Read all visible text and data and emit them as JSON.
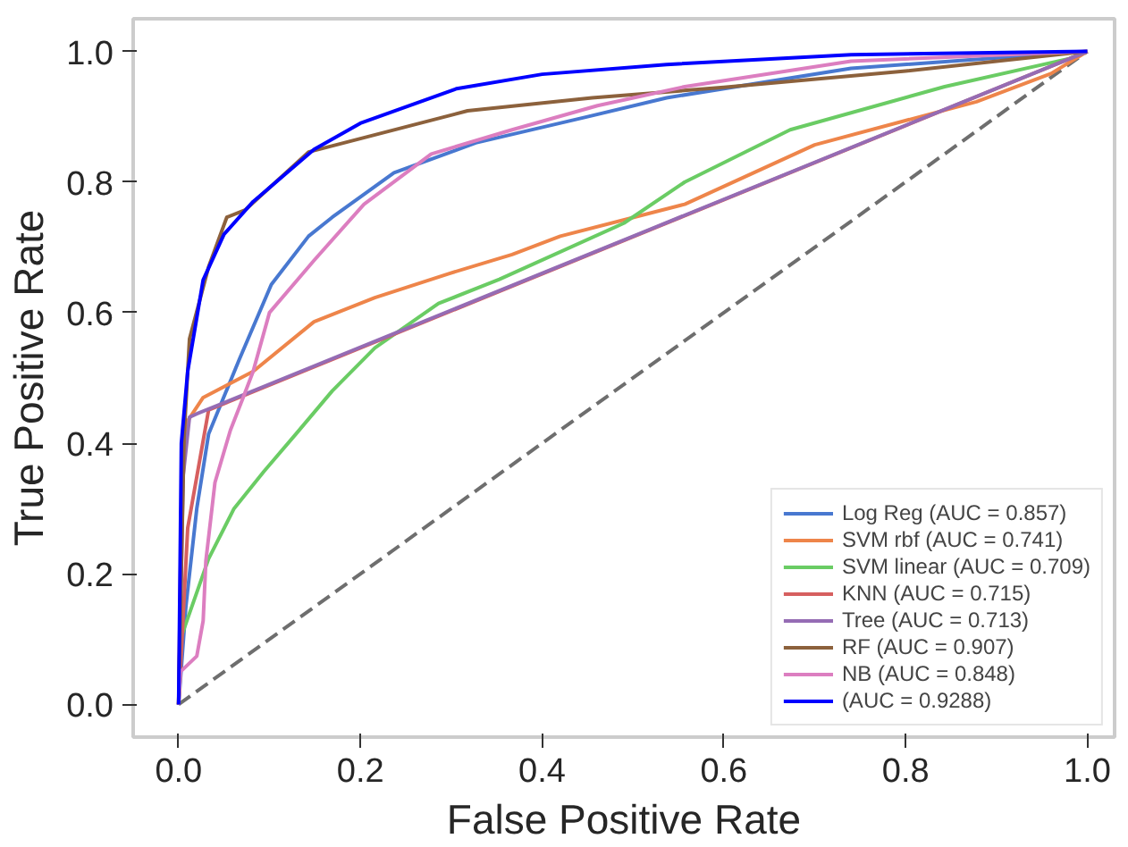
{
  "chart_data": {
    "type": "line",
    "xlabel": "False Positive Rate",
    "ylabel": "True Positive Rate",
    "xlim": [
      -0.05,
      1.03
    ],
    "ylim": [
      -0.05,
      1.05
    ],
    "xticks": [
      {
        "value": 0,
        "label": "0.0"
      },
      0.2,
      0.4,
      0.6,
      0.8,
      {
        "value": 1,
        "label": "1.0"
      }
    ],
    "yticks": [
      {
        "value": 0,
        "label": "0.0"
      },
      0.2,
      0.4,
      0.6,
      0.8,
      {
        "value": 1,
        "label": "1.0"
      }
    ],
    "grid": false,
    "legend": "bottom right",
    "series": [
      {
        "name": null,
        "color": "#6e6e6e",
        "line_style": "dashed",
        "x": [
          0,
          1
        ],
        "values": [
          0,
          1
        ]
      },
      {
        "name": "Log Reg (AUC = 0.857)",
        "color": "#4878d0",
        "x": [
          0,
          0.008,
          0.02,
          0.033,
          0.067,
          0.102,
          0.143,
          0.169,
          0.237,
          0.327,
          0.45,
          0.537,
          0.74,
          1
        ],
        "values": [
          0,
          0.15,
          0.3,
          0.414,
          0.529,
          0.643,
          0.717,
          0.746,
          0.814,
          0.86,
          0.9,
          0.929,
          0.974,
          1
        ]
      },
      {
        "name": "SVM rbf (AUC = 0.741)",
        "color": "#ee854a",
        "x": [
          0,
          0.003,
          0.008,
          0.027,
          0.082,
          0.149,
          0.216,
          0.298,
          0.367,
          0.42,
          0.557,
          0.7,
          0.878,
          0.96,
          1
        ],
        "values": [
          0,
          0.3,
          0.43,
          0.47,
          0.51,
          0.586,
          0.623,
          0.66,
          0.689,
          0.717,
          0.766,
          0.857,
          0.923,
          0.966,
          1
        ]
      },
      {
        "name": "SVM linear (AUC = 0.709)",
        "color": "#6acc64",
        "x": [
          0,
          0.002,
          0.033,
          0.061,
          0.094,
          0.129,
          0.169,
          0.216,
          0.286,
          0.353,
          0.49,
          0.557,
          0.673,
          0.843,
          0.98,
          1
        ],
        "values": [
          0,
          0.1,
          0.223,
          0.3,
          0.357,
          0.414,
          0.48,
          0.546,
          0.614,
          0.651,
          0.737,
          0.8,
          0.88,
          0.946,
          0.989,
          1
        ]
      },
      {
        "name": "KNN (AUC = 0.715)",
        "color": "#d65f5f",
        "x": [
          0,
          0.01,
          0.033,
          1
        ],
        "values": [
          0,
          0.27,
          0.451,
          1
        ]
      },
      {
        "name": "Tree (AUC = 0.713)",
        "color": "#956cb4",
        "x": [
          0,
          0.005,
          0.012,
          0.02,
          1
        ],
        "values": [
          0,
          0.35,
          0.44,
          0.445,
          1
        ]
      },
      {
        "name": "RF (AUC = 0.907)",
        "color": "#8c613c",
        "x": [
          0,
          0.006,
          0.012,
          0.033,
          0.053,
          0.073,
          0.143,
          0.318,
          0.455,
          0.6,
          0.8,
          1
        ],
        "values": [
          0,
          0.41,
          0.56,
          0.67,
          0.746,
          0.757,
          0.846,
          0.909,
          0.929,
          0.945,
          0.97,
          1
        ]
      },
      {
        "name": "NB (AUC = 0.848)",
        "color": "#dc7ec0",
        "x": [
          0,
          0.002,
          0.02,
          0.027,
          0.03,
          0.04,
          0.057,
          0.071,
          0.082,
          0.1,
          0.149,
          0.204,
          0.278,
          0.367,
          0.461,
          0.557,
          0.74,
          1
        ],
        "values": [
          0,
          0.05,
          0.074,
          0.128,
          0.22,
          0.34,
          0.42,
          0.47,
          0.51,
          0.6,
          0.68,
          0.766,
          0.843,
          0.88,
          0.917,
          0.946,
          0.985,
          1
        ]
      },
      {
        "name": "(AUC = 0.9288)",
        "color": "#0000ff",
        "x": [
          0,
          0.003,
          0.01,
          0.027,
          0.05,
          0.082,
          0.149,
          0.2,
          0.306,
          0.4,
          0.537,
          0.74,
          1
        ],
        "values": [
          0,
          0.4,
          0.51,
          0.65,
          0.72,
          0.77,
          0.85,
          0.89,
          0.943,
          0.965,
          0.98,
          0.995,
          1
        ]
      }
    ]
  }
}
